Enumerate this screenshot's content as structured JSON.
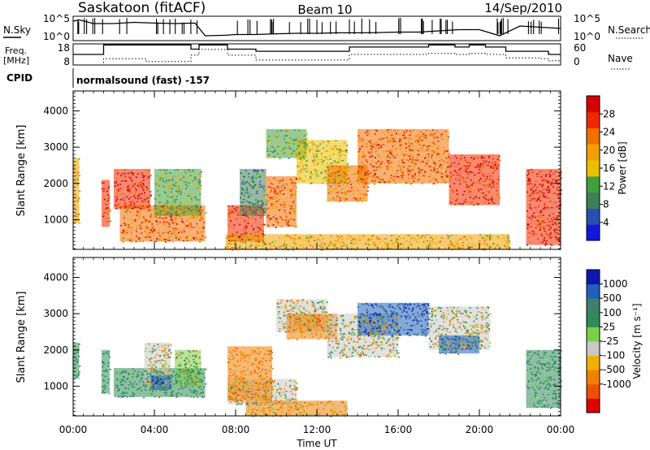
{
  "header": {
    "station": "Saskatoon (fitACF)",
    "beam": "Beam 10",
    "date": "14/Sep/2010"
  },
  "strip_nsky": {
    "left_label": "N.Sky",
    "right_label": "N.Search",
    "left_ticks": [
      "10^5",
      "10^0"
    ],
    "right_ticks": [
      "10^5",
      "10^0"
    ]
  },
  "strip_freq": {
    "left_label_1": "Freq.",
    "left_label_2": "[MHz]",
    "right_label": "Nave",
    "left_ticks": [
      "18",
      "8"
    ],
    "right_ticks": [
      "60",
      "0"
    ]
  },
  "cpid": {
    "label": "CPID",
    "text": "normalsound (fast) -157"
  },
  "x_axis": {
    "label": "Time UT",
    "ticks": [
      "00:00",
      "04:00",
      "08:00",
      "12:00",
      "16:00",
      "20:00",
      "00:00"
    ]
  },
  "colors": {
    "power_scale": [
      "#1515e0",
      "#2a4fb0",
      "#3f7f58",
      "#3fa040",
      "#e8c000",
      "#f0a000",
      "#f07000",
      "#f02800",
      "#d80000"
    ],
    "velocity_scale": [
      "#e00000",
      "#f05000",
      "#f08000",
      "#f0b000",
      "#c8c8c8",
      "#7bd04a",
      "#2e8b57",
      "#3e7f6e",
      "#2060b8",
      "#0a18b0"
    ]
  },
  "chart_data": [
    {
      "type": "heatmap",
      "title": "Power",
      "xlabel": "Time UT",
      "ylabel": "Slant Range [km]",
      "y_ticks": [
        "1000",
        "2000",
        "3000",
        "4000"
      ],
      "xlim": [
        0,
        24
      ],
      "ylim": [
        180,
        4550
      ],
      "colorbar": {
        "label": "Power [dB]",
        "ticks": [
          "4",
          "8",
          "12",
          "16",
          "20",
          "24",
          "28"
        ],
        "range": [
          0,
          32
        ]
      },
      "regions": [
        {
          "t0": 0.0,
          "t1": 0.3,
          "r0": 900,
          "r1": 2700,
          "value": 18
        },
        {
          "t0": 1.4,
          "t1": 1.8,
          "r0": 800,
          "r1": 2100,
          "value": 26
        },
        {
          "t0": 2.0,
          "t1": 3.8,
          "r0": 1300,
          "r1": 2400,
          "value": 28
        },
        {
          "t0": 2.3,
          "t1": 6.5,
          "r0": 400,
          "r1": 1400,
          "value": 24
        },
        {
          "t0": 4.0,
          "t1": 6.3,
          "r0": 1100,
          "r1": 2400,
          "value": 14
        },
        {
          "t0": 7.6,
          "t1": 9.4,
          "r0": 400,
          "r1": 1400,
          "value": 26
        },
        {
          "t0": 8.2,
          "t1": 9.5,
          "r0": 1100,
          "r1": 2400,
          "value": 10
        },
        {
          "t0": 9.5,
          "t1": 11.0,
          "r0": 800,
          "r1": 2200,
          "value": 24
        },
        {
          "t0": 9.5,
          "t1": 11.5,
          "r0": 2700,
          "r1": 3500,
          "value": 14
        },
        {
          "t0": 11.0,
          "t1": 13.5,
          "r0": 2000,
          "r1": 3200,
          "value": 16
        },
        {
          "t0": 12.5,
          "t1": 14.5,
          "r0": 1500,
          "r1": 2500,
          "value": 22
        },
        {
          "t0": 14.0,
          "t1": 18.5,
          "r0": 2000,
          "r1": 3500,
          "value": 24
        },
        {
          "t0": 18.5,
          "t1": 21.0,
          "r0": 1400,
          "r1": 2800,
          "value": 26
        },
        {
          "t0": 22.3,
          "t1": 24.0,
          "r0": 300,
          "r1": 2400,
          "value": 28
        },
        {
          "t0": 7.5,
          "t1": 21.5,
          "r0": 180,
          "r1": 600,
          "value": 18
        }
      ]
    },
    {
      "type": "heatmap",
      "title": "Velocity",
      "xlabel": "Time UT",
      "ylabel": "Slant Range [km]",
      "y_ticks": [
        "1000",
        "2000",
        "3000",
        "4000"
      ],
      "xlim": [
        0,
        24
      ],
      "ylim": [
        180,
        4550
      ],
      "colorbar": {
        "label": "Velocity [m s⁻¹]",
        "ticks": [
          "1000",
          "500",
          "100",
          "25",
          "-25",
          "-100",
          "-500",
          "-1000"
        ]
      },
      "regions": [
        {
          "t0": 0.0,
          "t1": 0.3,
          "r0": 1200,
          "r1": 2200,
          "value": 300
        },
        {
          "t0": 1.4,
          "t1": 1.8,
          "r0": 800,
          "r1": 2000,
          "value": 300
        },
        {
          "t0": 2.0,
          "t1": 6.5,
          "r0": 700,
          "r1": 1500,
          "value": 350
        },
        {
          "t0": 3.5,
          "t1": 4.8,
          "r0": 1000,
          "r1": 2200,
          "value": 0
        },
        {
          "t0": 5.0,
          "t1": 6.3,
          "r0": 1000,
          "r1": 2000,
          "value": 50
        },
        {
          "t0": 3.8,
          "t1": 4.8,
          "r0": 900,
          "r1": 1300,
          "value": 900
        },
        {
          "t0": 7.6,
          "t1": 11.0,
          "r0": 500,
          "r1": 1200,
          "value": 0
        },
        {
          "t0": 7.6,
          "t1": 9.8,
          "r0": 600,
          "r1": 2100,
          "value": -300
        },
        {
          "t0": 10.0,
          "t1": 12.5,
          "r0": 2500,
          "r1": 3400,
          "value": 0
        },
        {
          "t0": 10.5,
          "t1": 13.0,
          "r0": 2300,
          "r1": 3000,
          "value": -300
        },
        {
          "t0": 12.5,
          "t1": 16.0,
          "r0": 1800,
          "r1": 3000,
          "value": 0
        },
        {
          "t0": 14.0,
          "t1": 17.5,
          "r0": 2400,
          "r1": 3300,
          "value": 900
        },
        {
          "t0": 17.5,
          "t1": 20.5,
          "r0": 2000,
          "r1": 3200,
          "value": 0
        },
        {
          "t0": 18.0,
          "t1": 20.0,
          "r0": 1900,
          "r1": 2400,
          "value": 800
        },
        {
          "t0": 22.3,
          "t1": 24.0,
          "r0": 400,
          "r1": 2000,
          "value": 300
        },
        {
          "t0": 8.5,
          "t1": 13.5,
          "r0": 180,
          "r1": 600,
          "value": -150
        }
      ]
    },
    {
      "type": "line",
      "title": "N.Sky / N.Search",
      "x": [
        0.0,
        0.3,
        1.0,
        2.0,
        3.0,
        4.0,
        5.0,
        6.0,
        6.5,
        7.5,
        8.0,
        9.0,
        10.0,
        11.0,
        12.0,
        13.0,
        14.0,
        15.0,
        16.0,
        17.0,
        18.0,
        19.0,
        20.0,
        21.0,
        22.0,
        23.0,
        24.0
      ],
      "series": [
        {
          "name": "N.Sky",
          "values": [
            0.8,
            0.85,
            0.7,
            0.7,
            0.75,
            0.72,
            0.7,
            0.72,
            0.2,
            0.22,
            0.25,
            0.25,
            0.28,
            0.3,
            0.3,
            0.32,
            0.32,
            0.33,
            0.35,
            0.35,
            0.4,
            0.45,
            0.45,
            0.2,
            0.6,
            0.55,
            0.5
          ]
        }
      ]
    },
    {
      "type": "line",
      "title": "Freq / Nave",
      "x": [
        0.0,
        1.5,
        3.6,
        5.8,
        6.2,
        6.8,
        7.6,
        9.0,
        10.3,
        12.5,
        13.6,
        17.0,
        17.5,
        18.8,
        19.5,
        20.3,
        21.3,
        22.0,
        23.0,
        23.4,
        24.0
      ],
      "series": [
        {
          "name": "Freq",
          "values": [
            13,
            17.5,
            17.5,
            15.5,
            17.5,
            17.5,
            15.5,
            14.5,
            14.5,
            14.5,
            16.5,
            16.5,
            17.5,
            16.5,
            17.5,
            16.5,
            14.5,
            14.5,
            14.5,
            13.0,
            13.0
          ]
        },
        {
          "name": "Nave",
          "values": [
            0,
            18,
            10,
            28,
            44,
            44,
            28,
            14,
            14,
            14,
            30,
            30,
            33,
            30,
            33,
            30,
            20,
            20,
            18,
            12,
            12
          ]
        }
      ]
    }
  ]
}
